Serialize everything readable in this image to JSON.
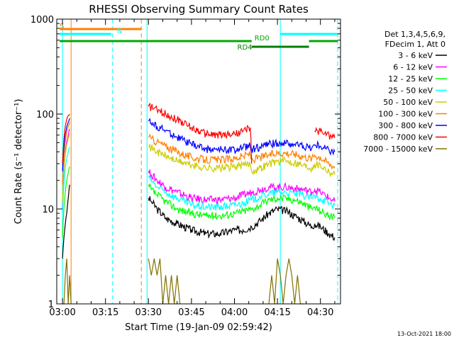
{
  "chart_data": {
    "type": "line",
    "title": "RHESSI Observing Summary Count Rates",
    "xlabel": "Start Time (19-Jan-09 02:59:42)",
    "ylabel": "Count Rate (s⁻¹ detector⁻¹)",
    "yscale": "log",
    "ylim": [
      1,
      1000
    ],
    "xlim_minutes": [
      -2,
      97
    ],
    "x_ticks": [
      {
        "label": "03:00",
        "m": 0
      },
      {
        "label": "03:15",
        "m": 15
      },
      {
        "label": "03:30",
        "m": 30
      },
      {
        "label": "03:45",
        "m": 45
      },
      {
        "label": "04:00",
        "m": 60
      },
      {
        "label": "04:15",
        "m": 75
      },
      {
        "label": "04:30",
        "m": 90
      }
    ],
    "y_ticks": [
      {
        "label": "1",
        "v": 1
      },
      {
        "label": "10",
        "v": 10
      },
      {
        "label": "100",
        "v": 100
      },
      {
        "label": "1000",
        "v": 1000
      }
    ],
    "legend_header": [
      "Det 1,3,4,5,6,9,",
      "FDecim 1, Att 0"
    ],
    "legend_position": "right",
    "timestamp": "13-Oct-2021 18:00",
    "series": [
      {
        "name": "3 - 6 keV",
        "color": "#000000",
        "x": [
          0,
          0.5,
          1,
          1.5,
          2,
          2.5,
          30,
          31,
          33,
          36,
          40,
          45,
          50,
          55,
          60,
          63,
          66,
          69,
          72,
          75,
          78,
          81,
          84,
          87,
          88,
          90,
          93,
          95
        ],
        "y": [
          3,
          5,
          7,
          9,
          13,
          18,
          13,
          12,
          10,
          8,
          7,
          6,
          5.5,
          5.5,
          6,
          6,
          6.5,
          7.5,
          9,
          10,
          9.5,
          8.5,
          7.5,
          6.5,
          7,
          6.5,
          5.5,
          5
        ]
      },
      {
        "name": "6 - 12 keV",
        "color": "#ff00ff",
        "x": [
          0,
          0.5,
          1,
          1.5,
          2,
          2.5,
          30,
          31,
          33,
          36,
          40,
          45,
          50,
          55,
          60,
          63,
          66,
          69,
          72,
          75,
          78,
          81,
          84,
          87,
          88,
          90,
          93,
          95
        ],
        "y": [
          10,
          25,
          40,
          52,
          60,
          70,
          25,
          23,
          20,
          17,
          15,
          13,
          12.5,
          12.5,
          13,
          14,
          15,
          16,
          17,
          17,
          17,
          16.5,
          16,
          15,
          16,
          15,
          13,
          12
        ]
      },
      {
        "name": "12 - 25 keV",
        "color": "#00ff00",
        "x": [
          0,
          0.5,
          1,
          1.5,
          2,
          2.5,
          30,
          31,
          33,
          36,
          40,
          45,
          50,
          55,
          60,
          63,
          66,
          69,
          72,
          75,
          78,
          81,
          84,
          87,
          88,
          90,
          93,
          95
        ],
        "y": [
          5,
          10,
          15,
          20,
          24,
          28,
          18,
          16,
          14,
          12,
          10,
          9,
          8.5,
          8.5,
          9,
          9.5,
          10,
          11,
          12.5,
          13,
          13,
          12.5,
          11.5,
          10,
          10.5,
          9.5,
          8.5,
          8
        ]
      },
      {
        "name": "25 - 50 keV",
        "color": "#00ffff",
        "x": [
          0,
          0.5,
          1,
          1.5,
          2,
          2.5,
          30,
          31,
          33,
          36,
          40,
          45,
          50,
          55,
          60,
          63,
          66,
          69,
          72,
          75,
          78,
          81,
          84,
          87,
          88,
          90,
          93,
          95
        ],
        "y": [
          9,
          18,
          27,
          34,
          40,
          45,
          22,
          20,
          17,
          15,
          13,
          11,
          10.5,
          10.5,
          11,
          11.5,
          12.5,
          13.5,
          14.5,
          15,
          15,
          14.5,
          14,
          13,
          13.5,
          13,
          11.5,
          11
        ]
      },
      {
        "name": "50 - 100 keV",
        "color": "#cccc00",
        "x": [
          0,
          0.5,
          1,
          1.5,
          2,
          2.5,
          30,
          31,
          33,
          36,
          40,
          45,
          50,
          55,
          60,
          63,
          65.5,
          66,
          69,
          72,
          75,
          78,
          81,
          84,
          87,
          88,
          90,
          93,
          95
        ],
        "y": [
          12,
          25,
          38,
          48,
          56,
          62,
          45,
          44,
          40,
          36,
          32,
          29,
          27,
          27,
          28,
          29,
          30,
          25,
          27,
          30,
          32,
          32,
          31,
          29,
          27,
          30,
          29,
          25,
          23
        ]
      },
      {
        "name": "100 - 300 keV",
        "color": "#ff8000",
        "x": [
          0,
          0.5,
          1,
          1.5,
          2,
          2.5,
          30,
          31,
          33,
          36,
          40,
          45,
          50,
          55,
          60,
          63,
          65.5,
          66,
          69,
          72,
          75,
          78,
          81,
          84,
          87,
          88,
          90,
          93,
          95
        ],
        "y": [
          18,
          35,
          52,
          64,
          74,
          82,
          57,
          55,
          51,
          46,
          40,
          35,
          33,
          33,
          34,
          36,
          38,
          33,
          35,
          37,
          39,
          39,
          38,
          36,
          34,
          37,
          35,
          30,
          28
        ]
      },
      {
        "name": "300 - 800 keV",
        "color": "#0000ff",
        "x": [
          0,
          0.5,
          1,
          1.5,
          2,
          2.5,
          30,
          31,
          33,
          36,
          40,
          45,
          50,
          55,
          60,
          63,
          65.5,
          66,
          69,
          72,
          75,
          78,
          81,
          84,
          87,
          88,
          90,
          93,
          95
        ],
        "y": [
          25,
          45,
          62,
          74,
          82,
          90,
          84,
          80,
          74,
          67,
          57,
          48,
          43,
          42,
          42,
          44,
          46,
          43,
          45,
          48,
          50,
          49,
          48,
          46,
          44,
          47,
          46,
          42,
          40
        ]
      },
      {
        "name": "800 - 7000 keV",
        "color": "#ff0000",
        "x": [
          0,
          0.5,
          1,
          1.5,
          2,
          2.5,
          30,
          31,
          33,
          36,
          40,
          45,
          50,
          55,
          60,
          63,
          65.5,
          66,
          88,
          89,
          90,
          93,
          95
        ],
        "y": [
          30,
          55,
          75,
          88,
          96,
          100,
          120,
          118,
          110,
          100,
          88,
          72,
          62,
          60,
          62,
          66,
          72,
          30,
          66,
          67,
          66,
          60,
          56
        ]
      },
      {
        "name": "7000 - 15000 keV",
        "color": "#807000",
        "x": [
          0,
          0.5,
          1,
          1.5,
          2,
          2.5,
          3,
          30,
          31,
          32,
          33,
          34,
          35,
          36,
          37,
          38,
          39,
          40,
          41,
          72,
          73,
          74,
          75,
          76,
          77,
          78,
          79,
          80,
          81,
          82,
          83,
          84
        ],
        "y": [
          1,
          1,
          2,
          3,
          1,
          2,
          1,
          3,
          2,
          3,
          2,
          3,
          1,
          2,
          1,
          2,
          1,
          2,
          1,
          1,
          2,
          1,
          3,
          2,
          1,
          2,
          3,
          2,
          1,
          2,
          1,
          1
        ]
      }
    ],
    "flags": [
      {
        "label": "S",
        "color": "#ff8000",
        "level": "top",
        "x": [
          -1,
          27.5
        ],
        "label_x": -1
      },
      {
        "label": "N",
        "color": "#00ffff",
        "level": "upper",
        "x": [
          -1,
          17
        ],
        "label_x": 19
      },
      {
        "label": "N",
        "color": "#00ffff",
        "level": "upper",
        "x": [
          76,
          96
        ],
        "label_x": null
      },
      {
        "label": "RD0",
        "color": "#00aa00",
        "level": "middle",
        "x": [
          -1,
          66
        ],
        "label_x": 67
      },
      {
        "label": "RD0",
        "color": "#00aa00",
        "level": "middle",
        "x": [
          86,
          96
        ],
        "label_x": null
      },
      {
        "label": "RD4",
        "color": "#008000",
        "level": "lower",
        "x": [
          66,
          86
        ],
        "label_x": 61
      }
    ],
    "vertical_lines": [
      {
        "m": 0,
        "color": "#00ffff",
        "style": "solid"
      },
      {
        "m": 3,
        "color": "#ff8000",
        "style": "solid"
      },
      {
        "m": 17.5,
        "color": "#00ffff",
        "style": "dashed"
      },
      {
        "m": 27.5,
        "color": "#ff8000",
        "style": "dashed"
      },
      {
        "m": 29.5,
        "color": "#00ffff",
        "style": "solid"
      },
      {
        "m": 76,
        "color": "#00ffff",
        "style": "solid"
      },
      {
        "m": 96,
        "color": "#00ffff",
        "style": "dashed"
      }
    ]
  }
}
